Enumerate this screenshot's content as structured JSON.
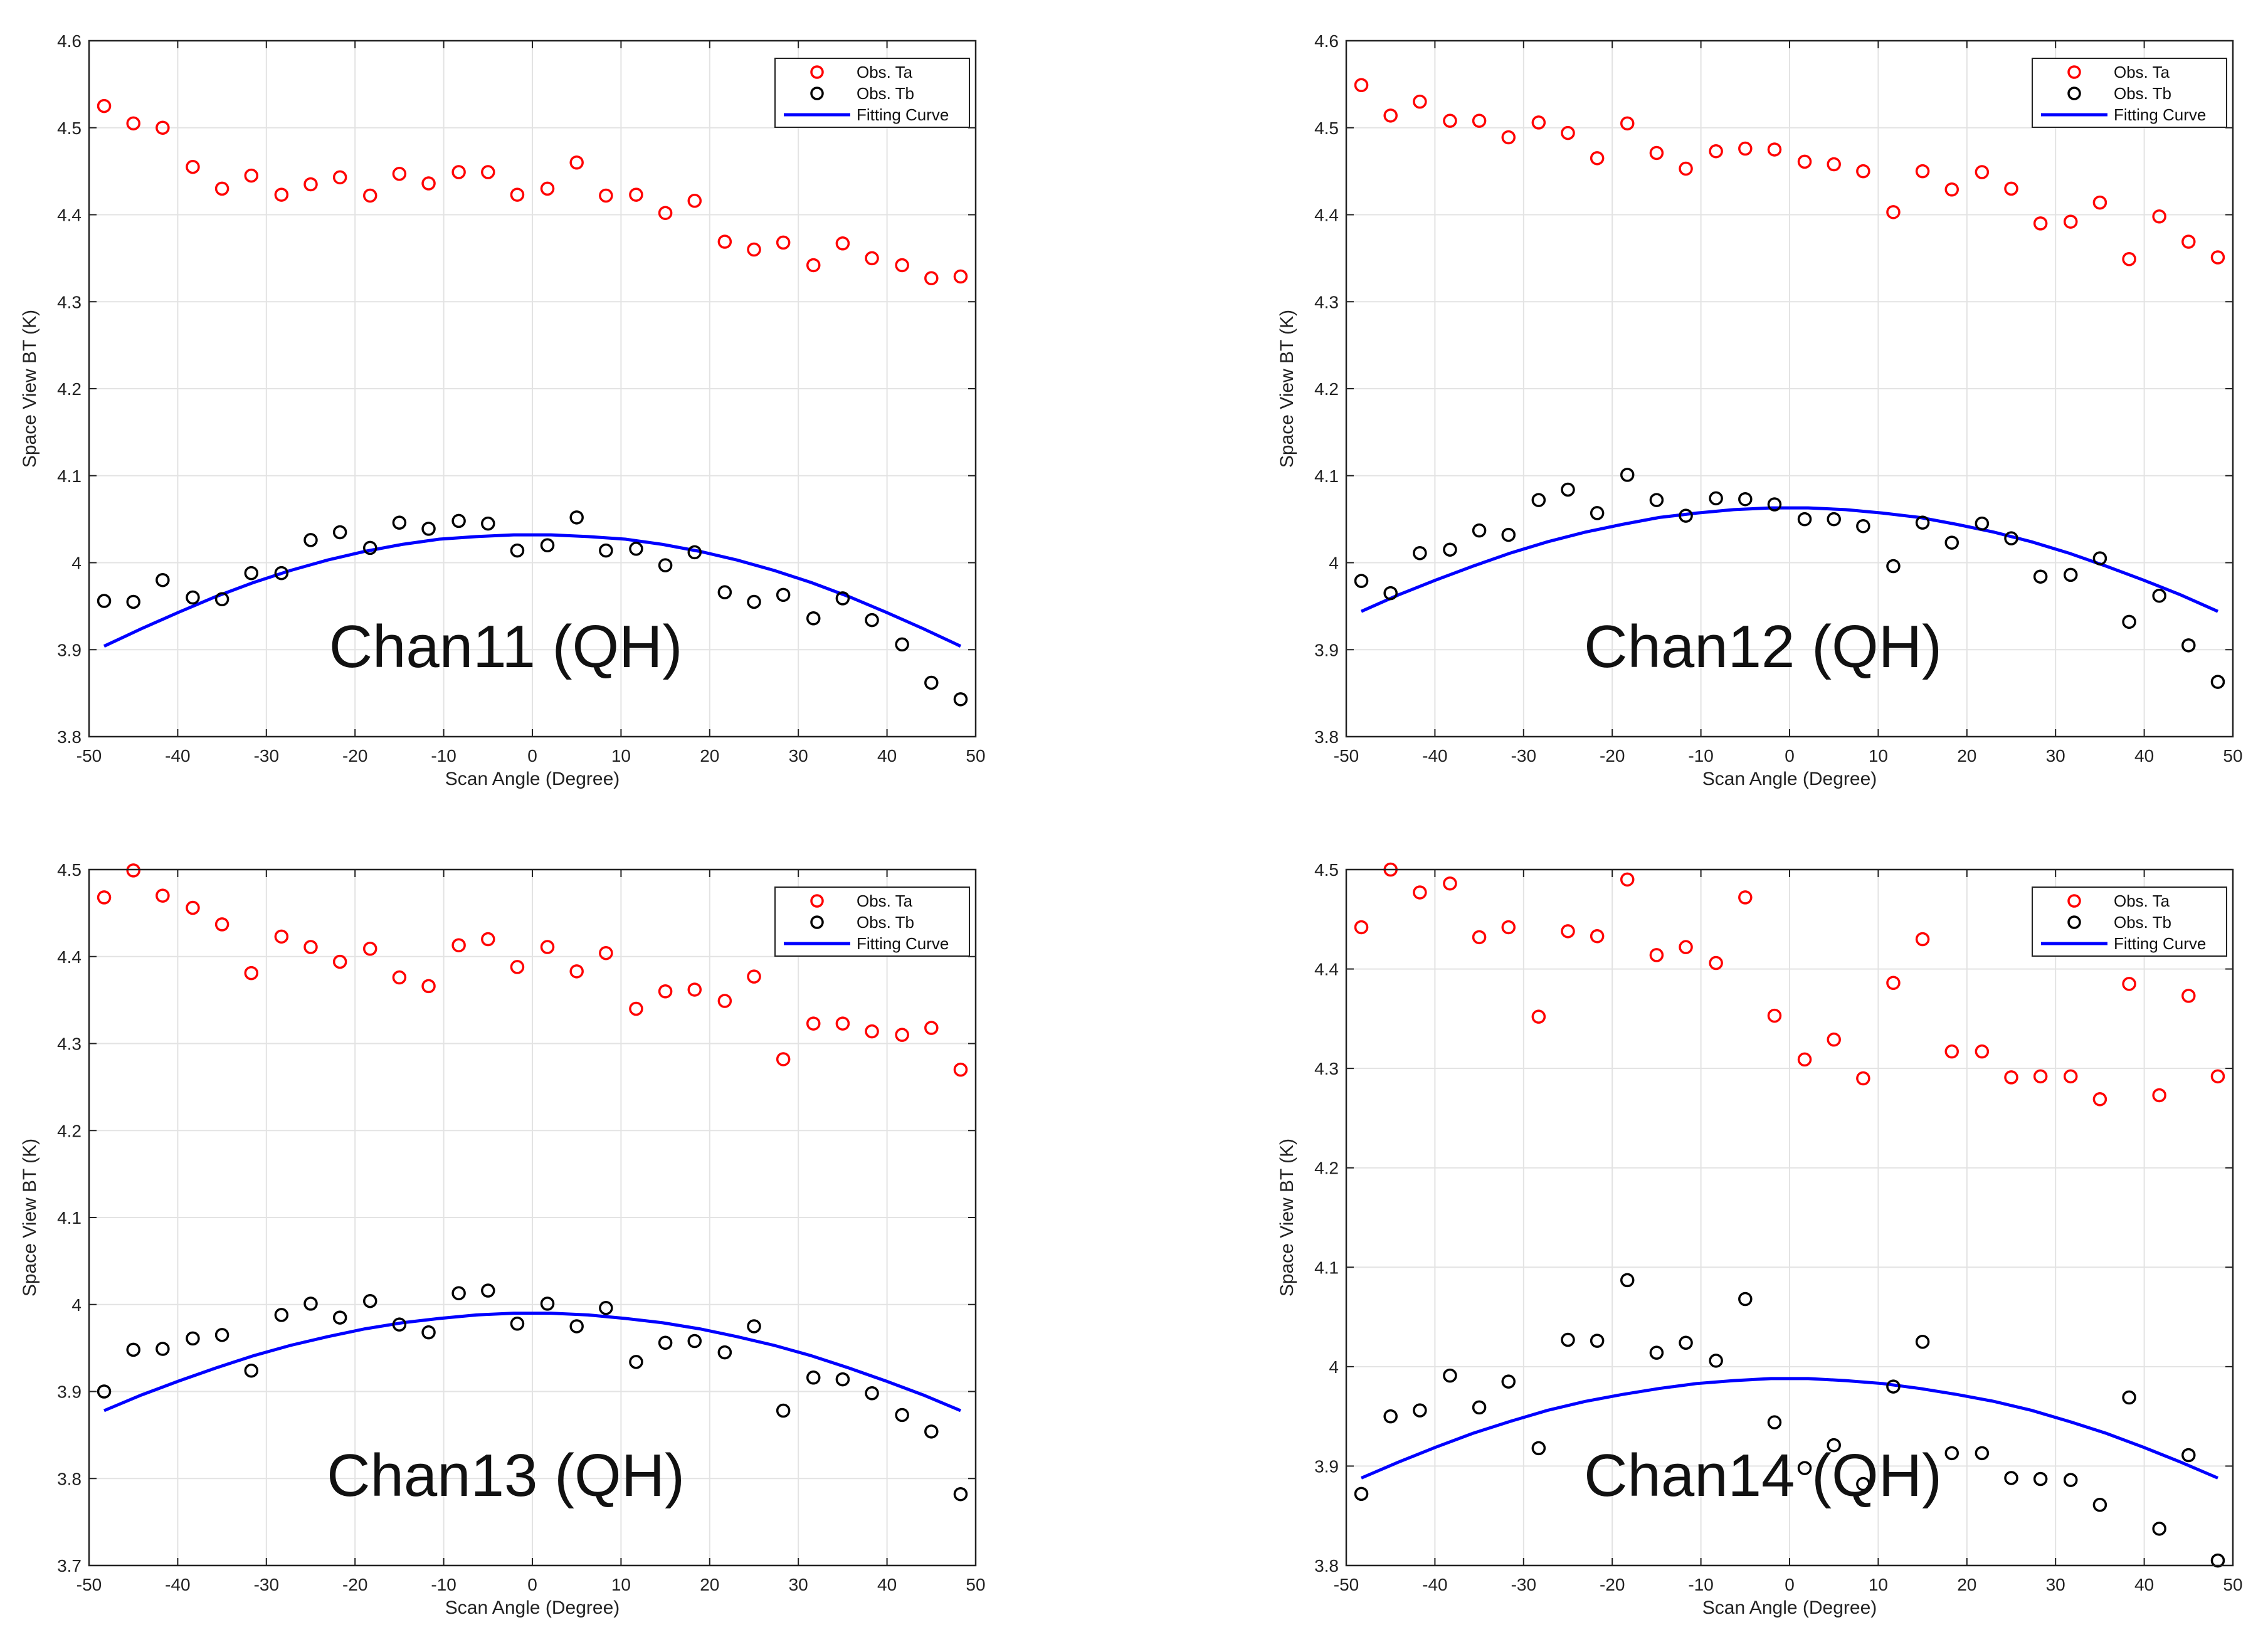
{
  "colors": {
    "ta": "#ff0000",
    "tb": "#000000",
    "fit": "#0000ff",
    "grid": "#e3e3e3",
    "axis": "#222222"
  },
  "legend_labels": {
    "ta": "Obs. Ta",
    "tb": "Obs. Tb",
    "fit": "Fitting Curve"
  },
  "chart_data": [
    {
      "type": "scatter",
      "title": "Chan11 (QH)",
      "xlabel": "Scan Angle (Degree)",
      "ylabel": "Space View BT (K)",
      "xlim": [
        -50,
        50
      ],
      "ylim": [
        3.8,
        4.6
      ],
      "xticks": [
        "-50",
        "-40",
        "-30",
        "-20",
        "-10",
        "0",
        "10",
        "20",
        "30",
        "40",
        "50"
      ],
      "yticks": [
        "3.8",
        "3.9",
        "4",
        "4.1",
        "4.2",
        "4.3",
        "4.4",
        "4.5",
        "4.6"
      ],
      "x": [
        -48.3,
        -45,
        -41.7,
        -38.3,
        -35,
        -31.7,
        -28.3,
        -25,
        -21.7,
        -18.3,
        -15,
        -11.7,
        -8.3,
        -5,
        -1.7,
        1.7,
        5,
        8.3,
        11.7,
        15,
        18.3,
        21.7,
        25,
        28.3,
        31.7,
        35,
        38.3,
        41.7,
        45,
        48.3
      ],
      "series": [
        {
          "name": "Obs. Ta",
          "values": [
            4.525,
            4.505,
            4.5,
            4.455,
            4.43,
            4.445,
            4.423,
            4.435,
            4.443,
            4.422,
            4.447,
            4.436,
            4.449,
            4.449,
            4.423,
            4.43,
            4.46,
            4.422,
            4.423,
            4.402,
            4.416,
            4.369,
            4.36,
            4.368,
            4.342,
            4.367,
            4.35,
            4.342,
            4.327,
            4.329
          ]
        },
        {
          "name": "Obs. Tb",
          "values": [
            3.956,
            3.955,
            3.98,
            3.96,
            3.958,
            3.988,
            3.988,
            4.026,
            4.035,
            4.017,
            4.046,
            4.039,
            4.048,
            4.045,
            4.014,
            4.02,
            4.052,
            4.014,
            4.016,
            3.997,
            4.012,
            3.966,
            3.955,
            3.963,
            3.936,
            3.959,
            3.934,
            3.906,
            3.862,
            3.843
          ]
        },
        {
          "name": "Fitting Curve",
          "line": true,
          "values": [
            3.904,
            3.924,
            3.943,
            3.961,
            3.977,
            3.991,
            4.003,
            4.013,
            4.021,
            4.027,
            4.03,
            4.032,
            4.032,
            4.03,
            4.027,
            4.021,
            4.013,
            4.003,
            3.991,
            3.977,
            3.961,
            3.943,
            3.924,
            3.904
          ]
        }
      ]
    },
    {
      "type": "scatter",
      "title": "Chan12 (QH)",
      "xlabel": "Scan Angle (Degree)",
      "ylabel": "Space View BT (K)",
      "xlim": [
        -50,
        50
      ],
      "ylim": [
        3.8,
        4.6
      ],
      "xticks": [
        "-50",
        "-40",
        "-30",
        "-20",
        "-10",
        "0",
        "10",
        "20",
        "30",
        "40",
        "50"
      ],
      "yticks": [
        "3.8",
        "3.9",
        "4",
        "4.1",
        "4.2",
        "4.3",
        "4.4",
        "4.5",
        "4.6"
      ],
      "x": [
        -48.3,
        -45,
        -41.7,
        -38.3,
        -35,
        -31.7,
        -28.3,
        -25,
        -21.7,
        -18.3,
        -15,
        -11.7,
        -8.3,
        -5,
        -1.7,
        1.7,
        5,
        8.3,
        11.7,
        15,
        18.3,
        21.7,
        25,
        28.3,
        31.7,
        35,
        38.3,
        41.7,
        45,
        48.3
      ],
      "series": [
        {
          "name": "Obs. Ta",
          "values": [
            4.549,
            4.514,
            4.53,
            4.508,
            4.508,
            4.489,
            4.506,
            4.494,
            4.465,
            4.505,
            4.471,
            4.453,
            4.473,
            4.476,
            4.475,
            4.461,
            4.458,
            4.45,
            4.403,
            4.45,
            4.429,
            4.449,
            4.43,
            4.39,
            4.392,
            4.414,
            4.349,
            4.398,
            4.369,
            4.351
          ]
        },
        {
          "name": "Obs. Tb",
          "values": [
            3.979,
            3.965,
            4.011,
            4.015,
            4.037,
            4.032,
            4.072,
            4.084,
            4.057,
            4.101,
            4.072,
            4.054,
            4.074,
            4.073,
            4.067,
            4.05,
            4.05,
            4.042,
            3.996,
            4.046,
            4.023,
            4.045,
            4.028,
            3.984,
            3.986,
            4.005,
            3.932,
            3.962,
            3.905,
            3.863
          ]
        },
        {
          "name": "Fitting Curve",
          "line": true,
          "values": [
            3.944,
            3.963,
            3.98,
            3.996,
            4.011,
            4.024,
            4.035,
            4.044,
            4.052,
            4.057,
            4.061,
            4.063,
            4.063,
            4.061,
            4.057,
            4.052,
            4.044,
            4.035,
            4.024,
            4.011,
            3.996,
            3.98,
            3.963,
            3.944
          ]
        }
      ]
    },
    {
      "type": "scatter",
      "title": "Chan13 (QH)",
      "xlabel": "Scan Angle (Degree)",
      "ylabel": "Space View BT (K)",
      "xlim": [
        -50,
        50
      ],
      "ylim": [
        3.7,
        4.5
      ],
      "xticks": [
        "-50",
        "-40",
        "-30",
        "-20",
        "-10",
        "0",
        "10",
        "20",
        "30",
        "40",
        "50"
      ],
      "yticks": [
        "3.7",
        "3.8",
        "3.9",
        "4",
        "4.1",
        "4.2",
        "4.3",
        "4.4",
        "4.5"
      ],
      "x": [
        -48.3,
        -45,
        -41.7,
        -38.3,
        -35,
        -31.7,
        -28.3,
        -25,
        -21.7,
        -18.3,
        -15,
        -11.7,
        -8.3,
        -5,
        -1.7,
        1.7,
        5,
        8.3,
        11.7,
        15,
        18.3,
        21.7,
        25,
        28.3,
        31.7,
        35,
        38.3,
        41.7,
        45,
        48.3
      ],
      "series": [
        {
          "name": "Obs. Ta",
          "values": [
            4.468,
            4.499,
            4.47,
            4.456,
            4.437,
            4.381,
            4.423,
            4.411,
            4.394,
            4.409,
            4.376,
            4.366,
            4.413,
            4.42,
            4.388,
            4.411,
            4.383,
            4.404,
            4.34,
            4.36,
            4.362,
            4.349,
            4.377,
            4.282,
            4.323,
            4.323,
            4.314,
            4.31,
            4.318,
            4.27
          ]
        },
        {
          "name": "Obs. Tb",
          "values": [
            3.9,
            3.948,
            3.949,
            3.961,
            3.965,
            3.924,
            3.988,
            4.001,
            3.985,
            4.004,
            3.977,
            3.968,
            4.013,
            4.016,
            3.978,
            4.001,
            3.975,
            3.996,
            3.934,
            3.956,
            3.958,
            3.945,
            3.975,
            3.878,
            3.916,
            3.914,
            3.898,
            3.873,
            3.854,
            3.782
          ]
        },
        {
          "name": "Fitting Curve",
          "line": true,
          "values": [
            3.878,
            3.896,
            3.912,
            3.927,
            3.941,
            3.953,
            3.963,
            3.972,
            3.979,
            3.984,
            3.988,
            3.99,
            3.99,
            3.988,
            3.984,
            3.979,
            3.972,
            3.963,
            3.953,
            3.941,
            3.927,
            3.912,
            3.896,
            3.878
          ]
        }
      ]
    },
    {
      "type": "scatter",
      "title": "Chan14 (QH)",
      "xlabel": "Scan Angle (Degree)",
      "ylabel": "Space View BT (K)",
      "xlim": [
        -50,
        50
      ],
      "ylim": [
        3.8,
        4.5
      ],
      "xticks": [
        "-50",
        "-40",
        "-30",
        "-20",
        "-10",
        "0",
        "10",
        "20",
        "30",
        "40",
        "50"
      ],
      "yticks": [
        "3.8",
        "3.9",
        "4",
        "4.1",
        "4.2",
        "4.3",
        "4.4",
        "4.5"
      ],
      "x": [
        -48.3,
        -45,
        -41.7,
        -38.3,
        -35,
        -31.7,
        -28.3,
        -25,
        -21.7,
        -18.3,
        -15,
        -11.7,
        -8.3,
        -5,
        -1.7,
        1.7,
        5,
        8.3,
        11.7,
        15,
        18.3,
        21.7,
        25,
        28.3,
        31.7,
        35,
        38.3,
        41.7,
        45,
        48.3
      ],
      "series": [
        {
          "name": "Obs. Ta",
          "values": [
            4.442,
            4.5,
            4.477,
            4.486,
            4.432,
            4.442,
            4.352,
            4.438,
            4.433,
            4.49,
            4.414,
            4.422,
            4.406,
            4.472,
            4.353,
            4.309,
            4.329,
            4.29,
            4.386,
            4.43,
            4.317,
            4.317,
            4.291,
            4.292,
            4.292,
            4.269,
            4.385,
            4.273,
            4.373,
            4.292
          ]
        },
        {
          "name": "Obs. Tb",
          "values": [
            3.872,
            3.95,
            3.956,
            3.991,
            3.959,
            3.985,
            3.918,
            4.027,
            4.026,
            4.087,
            4.014,
            4.024,
            4.006,
            4.068,
            3.944,
            3.898,
            3.921,
            3.882,
            3.98,
            4.025,
            3.913,
            3.913,
            3.888,
            3.887,
            3.886,
            3.861,
            3.969,
            3.837,
            3.911,
            3.805
          ]
        },
        {
          "name": "Fitting Curve",
          "line": true,
          "values": [
            3.888,
            3.904,
            3.919,
            3.933,
            3.945,
            3.956,
            3.965,
            3.972,
            3.978,
            3.983,
            3.986,
            3.988,
            3.988,
            3.986,
            3.983,
            3.978,
            3.972,
            3.965,
            3.956,
            3.945,
            3.933,
            3.919,
            3.904,
            3.888
          ]
        }
      ]
    }
  ]
}
